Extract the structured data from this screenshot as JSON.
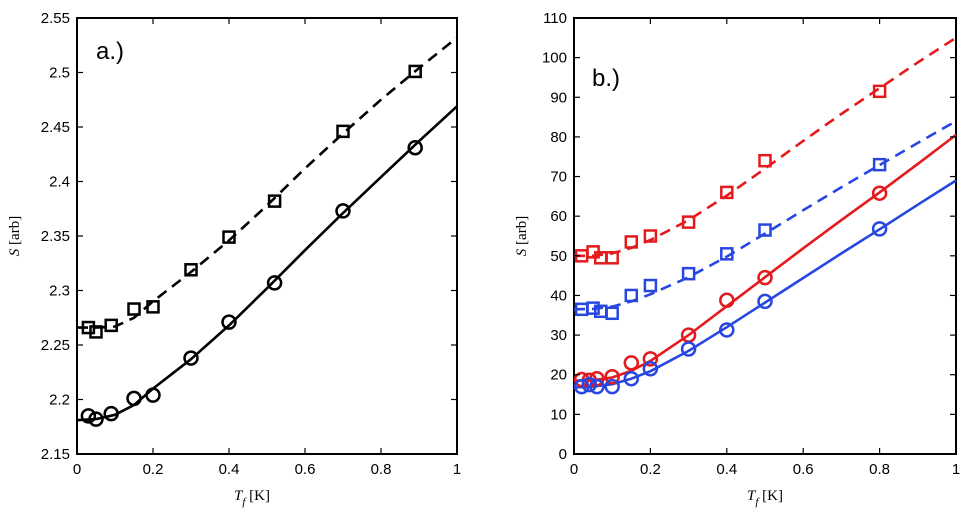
{
  "chart_data": [
    {
      "type": "scatter",
      "panel_label": "a.)",
      "xlabel": "T_f [K]",
      "ylabel": "S [arb]",
      "xlim": [
        0,
        1
      ],
      "ylim": [
        2.15,
        2.55
      ],
      "xticks": [
        "0",
        "0.2",
        "0.4",
        "0.6",
        "0.8",
        "1"
      ],
      "yticks": [
        "2.15",
        "2.2",
        "2.25",
        "2.3",
        "2.35",
        "2.4",
        "2.45",
        "2.5",
        "2.55"
      ],
      "grid": false,
      "series": [
        {
          "name": "squares",
          "color": "#000000",
          "marker": "square",
          "points": [
            [
              0.03,
              2.266
            ],
            [
              0.05,
              2.262
            ],
            [
              0.09,
              2.268
            ],
            [
              0.15,
              2.283
            ],
            [
              0.2,
              2.285
            ],
            [
              0.3,
              2.319
            ],
            [
              0.4,
              2.349
            ],
            [
              0.52,
              2.382
            ],
            [
              0.7,
              2.446
            ],
            [
              0.89,
              2.501
            ]
          ],
          "fit": {
            "style": "dashed",
            "points": [
              [
                0,
                2.266
              ],
              [
                0.05,
                2.266
              ],
              [
                0.1,
                2.267
              ],
              [
                0.15,
                2.275
              ],
              [
                0.2,
                2.29
              ],
              [
                0.3,
                2.317
              ],
              [
                0.4,
                2.346
              ],
              [
                0.5,
                2.378
              ],
              [
                0.6,
                2.412
              ],
              [
                0.7,
                2.444
              ],
              [
                0.8,
                2.475
              ],
              [
                0.9,
                2.504
              ],
              [
                1.0,
                2.532
              ]
            ]
          }
        },
        {
          "name": "circles",
          "color": "#000000",
          "marker": "circle",
          "points": [
            [
              0.03,
              2.185
            ],
            [
              0.05,
              2.182
            ],
            [
              0.09,
              2.187
            ],
            [
              0.15,
              2.201
            ],
            [
              0.2,
              2.204
            ],
            [
              0.3,
              2.238
            ],
            [
              0.4,
              2.271
            ],
            [
              0.52,
              2.307
            ],
            [
              0.7,
              2.373
            ],
            [
              0.89,
              2.431
            ]
          ],
          "fit": {
            "style": "solid",
            "points": [
              [
                0,
                2.181
              ],
              [
                0.05,
                2.182
              ],
              [
                0.1,
                2.186
              ],
              [
                0.15,
                2.195
              ],
              [
                0.2,
                2.21
              ],
              [
                0.3,
                2.237
              ],
              [
                0.4,
                2.268
              ],
              [
                0.5,
                2.302
              ],
              [
                0.6,
                2.337
              ],
              [
                0.7,
                2.371
              ],
              [
                0.8,
                2.404
              ],
              [
                0.9,
                2.437
              ],
              [
                1.0,
                2.469
              ]
            ]
          }
        }
      ]
    },
    {
      "type": "scatter",
      "panel_label": "b.)",
      "xlabel": "T_f [K]",
      "ylabel": "S [arb]",
      "xlim": [
        0,
        1
      ],
      "ylim": [
        0,
        110
      ],
      "xticks": [
        "0",
        "0.2",
        "0.4",
        "0.6",
        "0.8",
        "1"
      ],
      "yticks": [
        "0",
        "10",
        "20",
        "30",
        "40",
        "50",
        "60",
        "70",
        "80",
        "90",
        "100",
        "110"
      ],
      "grid": false,
      "series": [
        {
          "name": "red squares",
          "color": "#e41a1c",
          "marker": "square",
          "points": [
            [
              0.02,
              50.0
            ],
            [
              0.05,
              51.0
            ],
            [
              0.07,
              49.5
            ],
            [
              0.1,
              49.5
            ],
            [
              0.15,
              53.5
            ],
            [
              0.2,
              55.0
            ],
            [
              0.3,
              58.5
            ],
            [
              0.4,
              66.0
            ],
            [
              0.5,
              74.0
            ],
            [
              0.8,
              91.5
            ]
          ],
          "fit": {
            "style": "dashed",
            "points": [
              [
                0,
                50.0
              ],
              [
                0.05,
                50.0
              ],
              [
                0.1,
                50.6
              ],
              [
                0.15,
                52.0
              ],
              [
                0.2,
                54.0
              ],
              [
                0.3,
                59.0
              ],
              [
                0.4,
                65.2
              ],
              [
                0.5,
                72.0
              ],
              [
                0.6,
                79.0
              ],
              [
                0.7,
                85.8
              ],
              [
                0.8,
                92.3
              ],
              [
                0.9,
                98.8
              ],
              [
                1.0,
                105.0
              ]
            ]
          }
        },
        {
          "name": "blue squares",
          "color": "#2747e0",
          "marker": "square",
          "points": [
            [
              0.02,
              36.5
            ],
            [
              0.05,
              36.8
            ],
            [
              0.07,
              36.0
            ],
            [
              0.1,
              35.5
            ],
            [
              0.15,
              40.0
            ],
            [
              0.2,
              42.5
            ],
            [
              0.3,
              45.5
            ],
            [
              0.4,
              50.5
            ],
            [
              0.5,
              56.5
            ],
            [
              0.8,
              73.0
            ]
          ],
          "fit": {
            "style": "dashed",
            "points": [
              [
                0,
                36.5
              ],
              [
                0.05,
                36.6
              ],
              [
                0.1,
                37.2
              ],
              [
                0.15,
                38.5
              ],
              [
                0.2,
                40.3
              ],
              [
                0.3,
                44.6
              ],
              [
                0.4,
                49.8
              ],
              [
                0.5,
                55.6
              ],
              [
                0.6,
                61.5
              ],
              [
                0.7,
                67.3
              ],
              [
                0.8,
                72.9
              ],
              [
                0.9,
                78.5
              ],
              [
                1.0,
                84.0
              ]
            ]
          }
        },
        {
          "name": "red circles",
          "color": "#e41a1c",
          "marker": "circle",
          "points": [
            [
              0.02,
              18.8
            ],
            [
              0.04,
              18.6
            ],
            [
              0.06,
              19.0
            ],
            [
              0.1,
              19.5
            ],
            [
              0.15,
              23.0
            ],
            [
              0.2,
              24.0
            ],
            [
              0.3,
              30.0
            ],
            [
              0.4,
              38.8
            ],
            [
              0.5,
              44.5
            ],
            [
              0.8,
              65.8
            ]
          ],
          "fit": {
            "style": "solid",
            "points": [
              [
                0,
                18.5
              ],
              [
                0.05,
                18.6
              ],
              [
                0.1,
                19.3
              ],
              [
                0.15,
                21.0
              ],
              [
                0.2,
                23.5
              ],
              [
                0.3,
                30.0
              ],
              [
                0.4,
                37.3
              ],
              [
                0.5,
                44.6
              ],
              [
                0.6,
                51.9
              ],
              [
                0.7,
                59.0
              ],
              [
                0.8,
                66.0
              ],
              [
                0.9,
                73.2
              ],
              [
                1.0,
                80.5
              ]
            ]
          }
        },
        {
          "name": "blue circles",
          "color": "#2747e0",
          "marker": "circle",
          "points": [
            [
              0.02,
              17.0
            ],
            [
              0.04,
              17.5
            ],
            [
              0.06,
              17.0
            ],
            [
              0.1,
              17.0
            ],
            [
              0.15,
              19.0
            ],
            [
              0.2,
              21.5
            ],
            [
              0.3,
              26.5
            ],
            [
              0.4,
              31.3
            ],
            [
              0.5,
              38.5
            ],
            [
              0.8,
              56.8
            ]
          ],
          "fit": {
            "style": "solid",
            "points": [
              [
                0,
                16.8
              ],
              [
                0.05,
                17.0
              ],
              [
                0.1,
                17.6
              ],
              [
                0.15,
                19.0
              ],
              [
                0.2,
                20.9
              ],
              [
                0.3,
                26.0
              ],
              [
                0.4,
                32.0
              ],
              [
                0.5,
                38.2
              ],
              [
                0.6,
                44.4
              ],
              [
                0.7,
                50.6
              ],
              [
                0.8,
                56.7
              ],
              [
                0.9,
                62.9
              ],
              [
                1.0,
                69.0
              ]
            ]
          }
        }
      ]
    }
  ]
}
